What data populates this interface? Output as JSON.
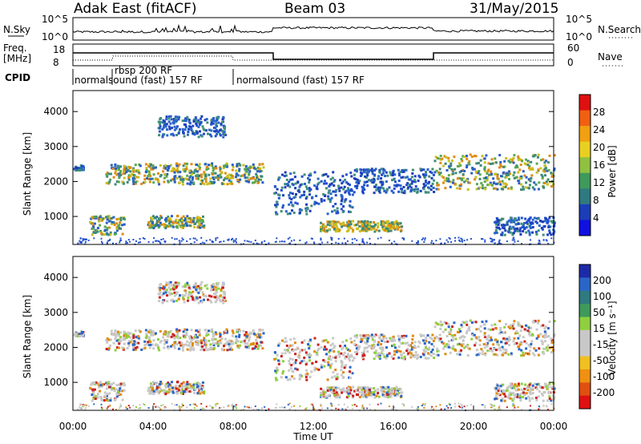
{
  "header": {
    "station": "Adak East (fitACF)",
    "beam": "Beam 03",
    "date": "31/May/2015"
  },
  "panels": {
    "noise": {
      "left_label": "N.Sky",
      "right_label": "N.Search",
      "ticks": [
        "10^5",
        "10^0"
      ]
    },
    "freq": {
      "left_label_1": "Freq.",
      "left_label_2": "[MHz]",
      "right_label": "Nave",
      "left_ticks": [
        "18",
        "8"
      ],
      "right_ticks": [
        "60",
        "0"
      ]
    },
    "cpid": {
      "label": "CPID",
      "segments": [
        "normalsound (fast) 157 RF",
        "rbsp 200 RF",
        "normalsound (fast) 157 RF"
      ]
    }
  },
  "colors": {
    "grid": "#000000",
    "trace": "#000000"
  },
  "chart_data": [
    {
      "type": "heatmap",
      "name": "power",
      "ylabel": "Slant Range [km]",
      "yticks": [
        1000,
        2000,
        3000,
        4000
      ],
      "ylim": [
        200,
        4600
      ],
      "xlim": [
        0,
        24
      ],
      "colorbar": {
        "label": "Power [dB]",
        "ticks": [
          "28",
          "24",
          "20",
          "16",
          "12",
          "8",
          "4"
        ]
      }
    },
    {
      "type": "heatmap",
      "name": "velocity",
      "ylabel": "Slant Range [km]",
      "xlabel": "Time UT",
      "yticks": [
        1000,
        2000,
        3000,
        4000
      ],
      "ylim": [
        200,
        4600
      ],
      "xlim": [
        0,
        24
      ],
      "xticks": [
        "00:00",
        "04:00",
        "08:00",
        "12:00",
        "16:00",
        "20:00",
        "00:00"
      ],
      "colorbar": {
        "label": "Velocity [m s⁻¹]",
        "ticks": [
          "200",
          "100",
          "50",
          "15",
          "-15",
          "-50",
          "-100",
          "-200"
        ]
      }
    }
  ]
}
